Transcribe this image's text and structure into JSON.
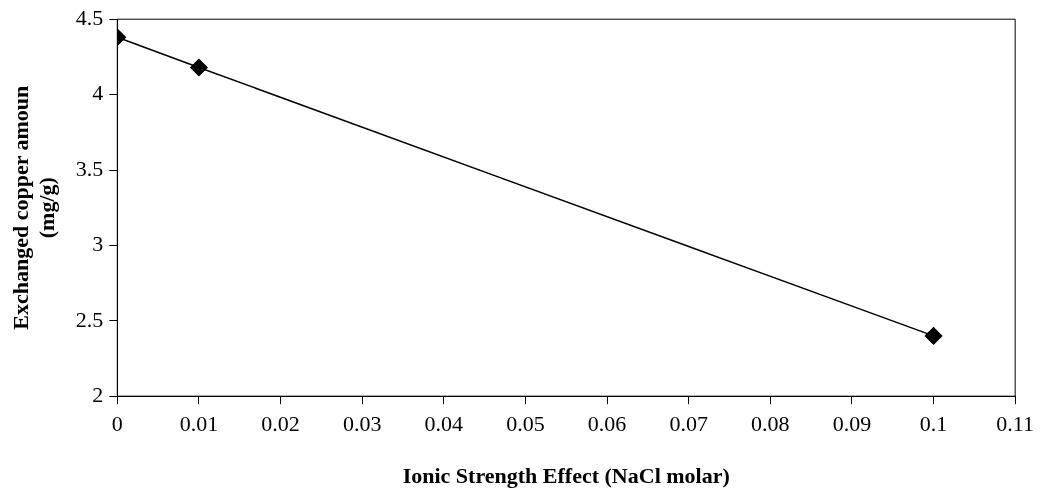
{
  "chart_data": {
    "type": "line",
    "xlabel": "Ionic Strength Effect (NaCl molar)",
    "ylabel": "Exchanged copper amoun\n(mg/g)",
    "x": [
      0,
      0.01,
      0.1
    ],
    "series": [
      {
        "color": "#000000",
        "values": [
          4.38,
          4.18,
          2.4
        ]
      }
    ],
    "xlim": [
      0,
      0.11
    ],
    "xticks": [
      0,
      0.01,
      0.02,
      0.03,
      0.04,
      0.05,
      0.06,
      0.07,
      0.08,
      0.09,
      0.1,
      0.11
    ],
    "ylim": [
      2,
      4.5
    ],
    "yticks": [
      2,
      2.5,
      3,
      3.5,
      4,
      4.5
    ],
    "grid": false,
    "legend": false,
    "marker": "diamond",
    "line_style": "solid"
  }
}
